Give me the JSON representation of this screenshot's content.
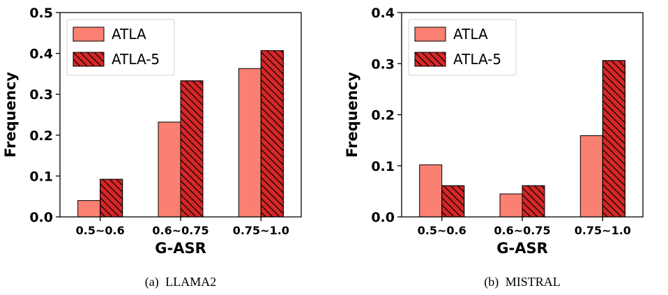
{
  "colors": {
    "atla": "#FA8072",
    "atla5": "#D62728",
    "edge": "#000000"
  },
  "chart_data": [
    {
      "type": "bar",
      "categories": [
        "0.5~0.6",
        "0.6~0.75",
        "0.75~1.0"
      ],
      "series": [
        {
          "name": "ATLA",
          "values": [
            0.04,
            0.232,
            0.363
          ]
        },
        {
          "name": "ATLA-5",
          "values": [
            0.092,
            0.333,
            0.407
          ]
        }
      ],
      "xlabel": "G-ASR",
      "ylabel": "Frequency",
      "ylim": [
        0,
        0.5
      ],
      "yticks": [
        "0.0",
        "0.1",
        "0.2",
        "0.3",
        "0.4",
        "0.5"
      ],
      "legend": "top-left",
      "caption_tag": "(a)",
      "caption_name": "LLAMA2"
    },
    {
      "type": "bar",
      "categories": [
        "0.5~0.6",
        "0.6~0.75",
        "0.75~1.0"
      ],
      "series": [
        {
          "name": "ATLA",
          "values": [
            0.102,
            0.045,
            0.159
          ]
        },
        {
          "name": "ATLA-5",
          "values": [
            0.061,
            0.061,
            0.306
          ]
        }
      ],
      "xlabel": "G-ASR",
      "ylabel": "Frequency",
      "ylim": [
        0,
        0.4
      ],
      "yticks": [
        "0.0",
        "0.1",
        "0.2",
        "0.3",
        "0.4"
      ],
      "legend": "top-left",
      "caption_tag": "(b)",
      "caption_name": "MISTRAL"
    }
  ]
}
